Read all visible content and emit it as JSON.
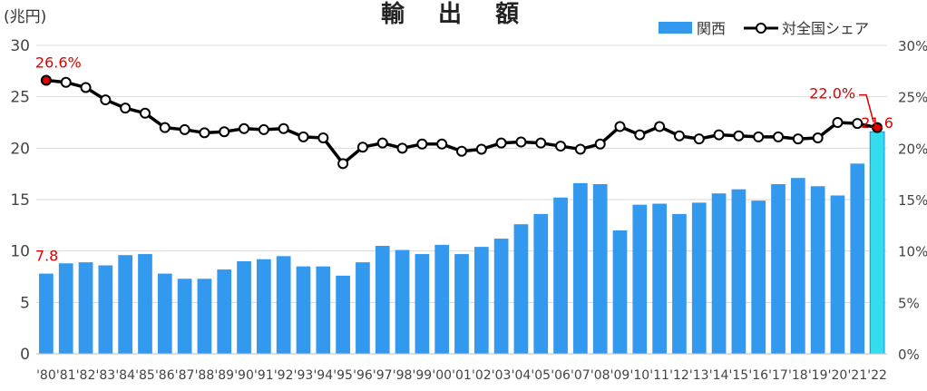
{
  "chart_data": {
    "type": "bar+line",
    "title": "輸 出 額",
    "y_unit": "(兆円)",
    "categories": [
      "'80",
      "'81",
      "'82",
      "'83",
      "'84",
      "'85",
      "'86",
      "'87",
      "'88",
      "'89",
      "'90",
      "'91",
      "'92",
      "'93",
      "'94",
      "'95",
      "'96",
      "'97",
      "'98",
      "'99",
      "'00",
      "'01",
      "'02",
      "'03",
      "'04",
      "'05",
      "'06",
      "'07",
      "'08",
      "'09",
      "'10",
      "'11",
      "'12",
      "'13",
      "'14",
      "'15",
      "'16",
      "'17",
      "'18",
      "'19",
      "'20",
      "'21",
      "'22"
    ],
    "series": [
      {
        "name": "関西",
        "type": "bar",
        "axis": "left",
        "color": "#3399ee",
        "highlight_color": "#33ddee",
        "highlight_index": 42,
        "values": [
          7.8,
          8.8,
          8.9,
          8.6,
          9.6,
          9.7,
          7.8,
          7.3,
          7.3,
          8.2,
          9.0,
          9.2,
          9.5,
          8.5,
          8.5,
          7.6,
          8.9,
          10.5,
          10.1,
          9.7,
          10.6,
          9.7,
          10.4,
          11.2,
          12.6,
          13.6,
          15.2,
          16.6,
          16.5,
          12.0,
          14.5,
          14.6,
          13.6,
          14.7,
          15.6,
          16.0,
          14.9,
          16.5,
          17.1,
          16.3,
          15.4,
          18.5,
          21.6
        ]
      },
      {
        "name": "対全国シェア",
        "type": "line",
        "axis": "right",
        "color": "#000000",
        "values": [
          26.6,
          26.4,
          25.9,
          24.7,
          23.9,
          23.4,
          22.0,
          21.8,
          21.5,
          21.6,
          21.9,
          21.8,
          21.9,
          21.1,
          21.0,
          18.5,
          20.1,
          20.5,
          20.0,
          20.4,
          20.4,
          19.7,
          19.9,
          20.5,
          20.6,
          20.5,
          20.2,
          19.9,
          20.4,
          22.1,
          21.3,
          22.1,
          21.2,
          20.9,
          21.3,
          21.2,
          21.1,
          21.1,
          20.9,
          21.0,
          22.5,
          22.4,
          22.0
        ]
      }
    ],
    "y_left": {
      "min": 0,
      "max": 30,
      "ticks": [
        0,
        5,
        10,
        15,
        20,
        25,
        30
      ]
    },
    "y_right": {
      "min": 0,
      "max": 30,
      "ticks": [
        "0%",
        "5%",
        "10%",
        "15%",
        "20%",
        "25%",
        "30%"
      ]
    },
    "grid": true,
    "legend_position": "top-right",
    "annotations": {
      "first_share": "26.6%",
      "last_share": "22.0%",
      "first_value": "7.8",
      "last_value": "21.6"
    },
    "annotation_color": "#e00000"
  }
}
